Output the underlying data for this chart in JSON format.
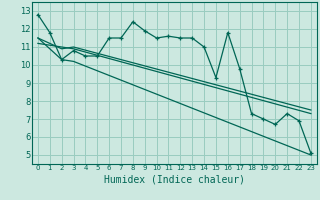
{
  "xlabel": "Humidex (Indice chaleur)",
  "bg_color": "#cce8e0",
  "grid_color": "#99ccc0",
  "line_color": "#006655",
  "marker": "+",
  "xlim": [
    -0.5,
    23.5
  ],
  "ylim": [
    4.5,
    13.5
  ],
  "xticks": [
    0,
    1,
    2,
    3,
    4,
    5,
    6,
    7,
    8,
    9,
    10,
    11,
    12,
    13,
    14,
    15,
    16,
    17,
    18,
    19,
    20,
    21,
    22,
    23
  ],
  "yticks": [
    5,
    6,
    7,
    8,
    9,
    10,
    11,
    12,
    13
  ],
  "series1_x": [
    0,
    1,
    2,
    3,
    4,
    5,
    6,
    7,
    8,
    9,
    10,
    11,
    12,
    13,
    14,
    15,
    16,
    17,
    18,
    19,
    20,
    21,
    22,
    23
  ],
  "series1_y": [
    12.8,
    11.8,
    10.3,
    10.8,
    10.5,
    10.5,
    11.5,
    11.5,
    12.4,
    11.9,
    11.5,
    11.6,
    11.5,
    11.5,
    11.0,
    9.3,
    11.8,
    9.8,
    7.3,
    7.0,
    6.7,
    7.3,
    6.9,
    5.1
  ],
  "series2_x": [
    0,
    2,
    3,
    23
  ],
  "series2_y": [
    11.5,
    10.3,
    10.2,
    5.0
  ],
  "series3_x": [
    0,
    2,
    3,
    23
  ],
  "series3_y": [
    11.2,
    11.0,
    10.9,
    7.3
  ],
  "series4_x": [
    0,
    2,
    3,
    23
  ],
  "series4_y": [
    11.5,
    10.9,
    11.0,
    7.5
  ]
}
